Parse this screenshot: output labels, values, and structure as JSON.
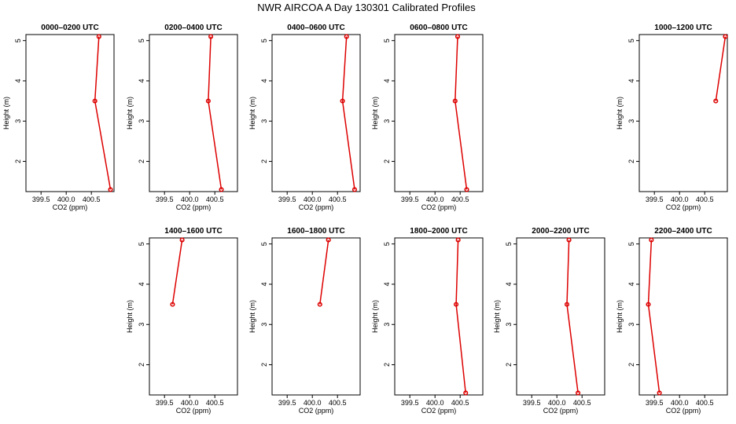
{
  "title": "NWR AIRCOA A   Day 130301   Calibrated Profiles",
  "colors": {
    "line": "#dd0000",
    "axis": "#000000"
  },
  "chart_data": {
    "type": "line",
    "xlabel": "CO2 (ppm)",
    "ylabel": "Height (m)",
    "xlim": [
      399.2,
      400.95
    ],
    "ylim": [
      1.25,
      5.15
    ],
    "xticks": [
      399.5,
      400.0,
      400.5
    ],
    "xtick_labels": [
      "399.5",
      "400.0",
      "400.5"
    ],
    "yticks": [
      2,
      3,
      4,
      5
    ],
    "ytick_labels": [
      "2",
      "3",
      "4",
      "5"
    ],
    "panels": [
      {
        "label": "0000–0200 UTC",
        "x": [
          400.65,
          400.57,
          400.88
        ],
        "y": [
          5.1,
          3.5,
          1.3
        ]
      },
      {
        "label": "0200–0400 UTC",
        "x": [
          400.42,
          400.37,
          400.63
        ],
        "y": [
          5.1,
          3.5,
          1.3
        ]
      },
      {
        "label": "0400–0600 UTC",
        "x": [
          400.68,
          400.6,
          400.84
        ],
        "y": [
          5.1,
          3.5,
          1.3
        ]
      },
      {
        "label": "0600–0800 UTC",
        "x": [
          400.45,
          400.4,
          400.63
        ],
        "y": [
          5.1,
          3.5,
          1.3
        ]
      },
      {
        "label": "1000–1200 UTC",
        "x": [
          400.91,
          400.72
        ],
        "y": [
          5.1,
          3.5
        ]
      },
      {
        "label": "1400–1600 UTC",
        "x": [
          399.85,
          399.66
        ],
        "y": [
          5.1,
          3.5
        ]
      },
      {
        "label": "1600–1800 UTC",
        "x": [
          400.32,
          400.15
        ],
        "y": [
          5.1,
          3.5
        ]
      },
      {
        "label": "1800–2000 UTC",
        "x": [
          400.46,
          400.42,
          400.61
        ],
        "y": [
          5.1,
          3.5,
          1.3
        ]
      },
      {
        "label": "2000–2200 UTC",
        "x": [
          400.24,
          400.2,
          400.42
        ],
        "y": [
          5.1,
          3.5,
          1.3
        ]
      },
      {
        "label": "2200–2400 UTC",
        "x": [
          399.44,
          399.38,
          399.6
        ],
        "y": [
          5.1,
          3.5,
          1.3
        ]
      }
    ]
  }
}
